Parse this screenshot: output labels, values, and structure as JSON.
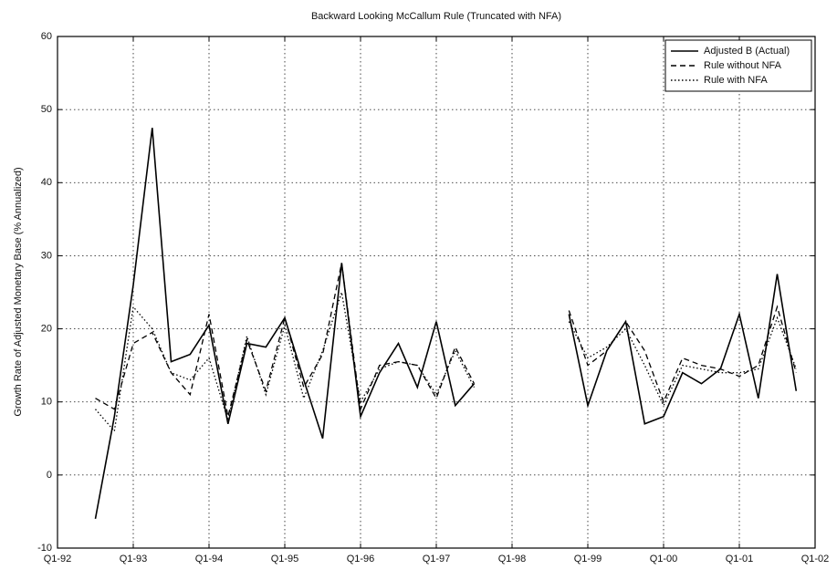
{
  "chart_data": {
    "type": "line",
    "title": "Backward Looking McCallum Rule (Truncated with NFA)",
    "y_label": "Growth Rate of Adjusted Monetary Base (% Annualized)",
    "x": [
      1992.5,
      1992.75,
      1993.0,
      1993.25,
      1993.5,
      1993.75,
      1994.0,
      1994.25,
      1994.5,
      1994.75,
      1995.0,
      1995.25,
      1995.5,
      1995.75,
      1996.0,
      1996.25,
      1996.5,
      1996.75,
      1997.0,
      1997.25,
      1997.5,
      1997.75,
      1998.0,
      1998.25,
      1998.5,
      1998.75,
      1999.0,
      1999.25,
      1999.5,
      1999.75,
      2000.0,
      2000.25,
      2000.5,
      2000.75,
      2001.0,
      2001.25,
      2001.5,
      2001.75
    ],
    "series": [
      {
        "name": "Adjusted B (Actual)",
        "color": "#000000",
        "style": "solid",
        "values": [
          -6,
          8,
          26,
          47.5,
          15.5,
          16.5,
          20.5,
          7,
          18,
          17.5,
          21.5,
          13,
          5,
          29,
          8,
          14,
          18,
          12,
          21,
          9.5,
          12.5,
          null,
          null,
          null,
          null,
          22,
          9.5,
          17,
          21,
          7,
          8,
          14,
          12.5,
          14.5,
          22,
          10.5,
          27.5,
          11.5
        ]
      },
      {
        "name": "Rule without NFA",
        "color": "#000000",
        "style": "dashed",
        "values": [
          10.5,
          9,
          18,
          19.5,
          14,
          11,
          22,
          8,
          18.5,
          11.5,
          21.5,
          12,
          16.5,
          29,
          9,
          15,
          15.5,
          15,
          10.5,
          17.5,
          12.5,
          null,
          null,
          null,
          null,
          22.5,
          15,
          17,
          21,
          17,
          10,
          16,
          15,
          14.5,
          13.5,
          15,
          23,
          14
        ]
      },
      {
        "name": "Rule with NFA",
        "color": "#000000",
        "style": "dotted",
        "values": [
          9,
          6,
          23,
          20,
          14,
          13,
          16,
          7.5,
          19,
          11,
          20.5,
          10.5,
          17,
          25,
          10,
          14.5,
          15.5,
          15,
          11,
          17,
          12,
          null,
          null,
          null,
          null,
          21,
          16,
          17.5,
          20,
          15,
          9.5,
          15,
          14.5,
          14,
          14,
          14.5,
          21.5,
          14.5
        ]
      }
    ],
    "xlim": [
      1992,
      2002
    ],
    "xticks": [
      {
        "value": 1992,
        "label": "Q1-92"
      },
      {
        "value": 1993,
        "label": "Q1-93"
      },
      {
        "value": 1994,
        "label": "Q1-94"
      },
      {
        "value": 1995,
        "label": "Q1-95"
      },
      {
        "value": 1996,
        "label": "Q1-96"
      },
      {
        "value": 1997,
        "label": "Q1-97"
      },
      {
        "value": 1998,
        "label": "Q1-98"
      },
      {
        "value": 1999,
        "label": "Q1-99"
      },
      {
        "value": 2000,
        "label": "Q1-00"
      },
      {
        "value": 2001,
        "label": "Q1-01"
      },
      {
        "value": 2002,
        "label": "Q1-02"
      }
    ],
    "ylim": [
      -10,
      60
    ],
    "yticks": [
      -10,
      0,
      10,
      20,
      30,
      40,
      50,
      60
    ],
    "grid": true,
    "legend": "top-right"
  }
}
